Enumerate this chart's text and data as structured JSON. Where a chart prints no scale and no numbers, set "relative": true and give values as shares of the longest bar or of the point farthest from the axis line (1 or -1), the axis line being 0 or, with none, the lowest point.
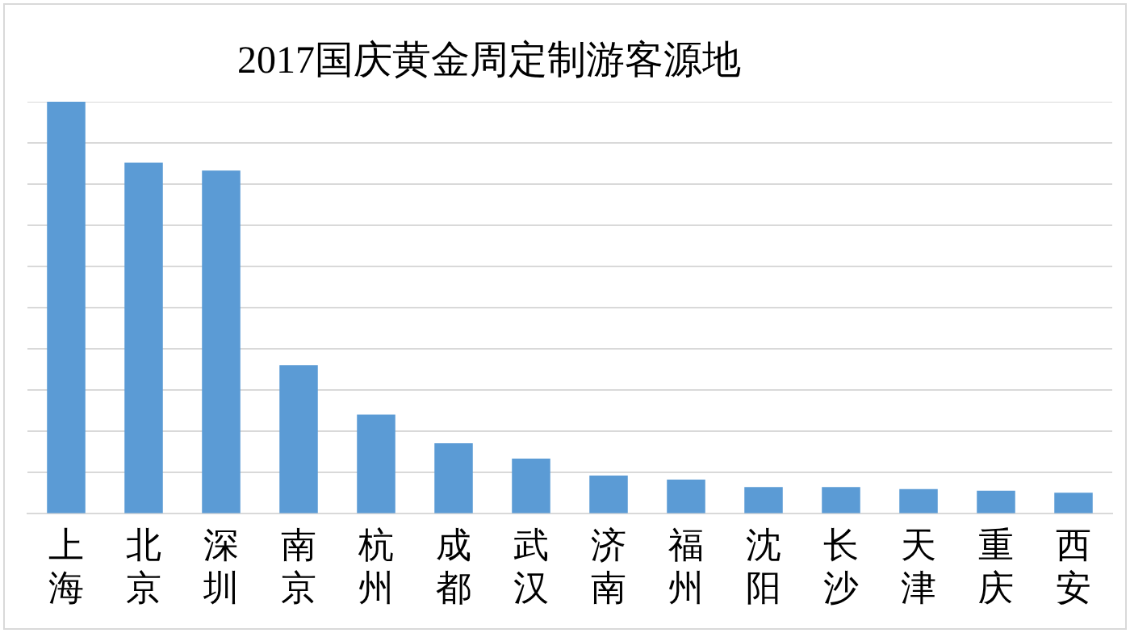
{
  "chart_data": {
    "type": "bar",
    "title": "2017国庆黄金周定制游客源地",
    "categories": [
      "上海",
      "北京",
      "深圳",
      "南京",
      "杭州",
      "成都",
      "武汉",
      "济南",
      "福州",
      "沈阳",
      "长沙",
      "天津",
      "重庆",
      "西安"
    ],
    "values": [
      1,
      0.852,
      0.833,
      0.361,
      0.241,
      0.171,
      0.134,
      0.093,
      0.083,
      0.065,
      0.065,
      0.06,
      0.056,
      0.051
    ],
    "color": "#5b9bd5",
    "relative": true,
    "grid": "y"
  }
}
